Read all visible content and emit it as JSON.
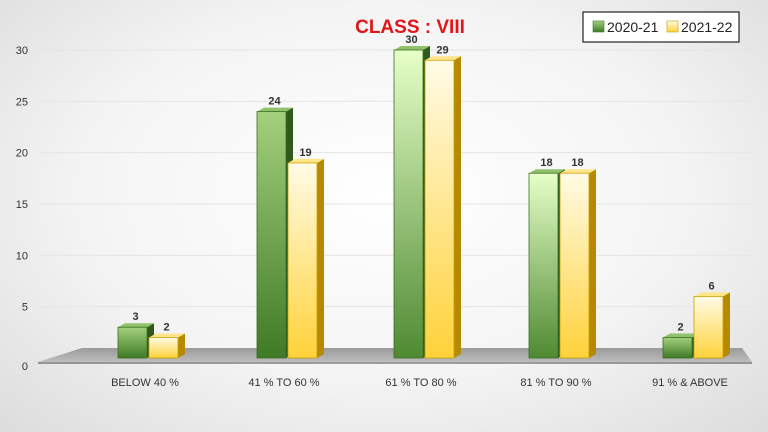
{
  "chart_data": {
    "type": "bar",
    "title": "CLASS : VIII",
    "xlabel": "",
    "ylabel": "",
    "categories": [
      "BELOW 40 %",
      "41 % TO 60 %",
      "61 % TO 80 %",
      "81 % TO 90 %",
      "91 % & ABOVE"
    ],
    "series": [
      {
        "name": "2020-21",
        "values": [
          3,
          24,
          30,
          18,
          2
        ],
        "color": "#5a9a3c"
      },
      {
        "name": "2021-22",
        "values": [
          2,
          19,
          29,
          18,
          6
        ],
        "color": "#f5c518"
      }
    ],
    "ylim": [
      0,
      30
    ],
    "yticks": [
      0,
      5,
      10,
      15,
      20,
      25,
      30
    ],
    "grid": true,
    "legend_position": "top-right",
    "style": "3d-column"
  }
}
